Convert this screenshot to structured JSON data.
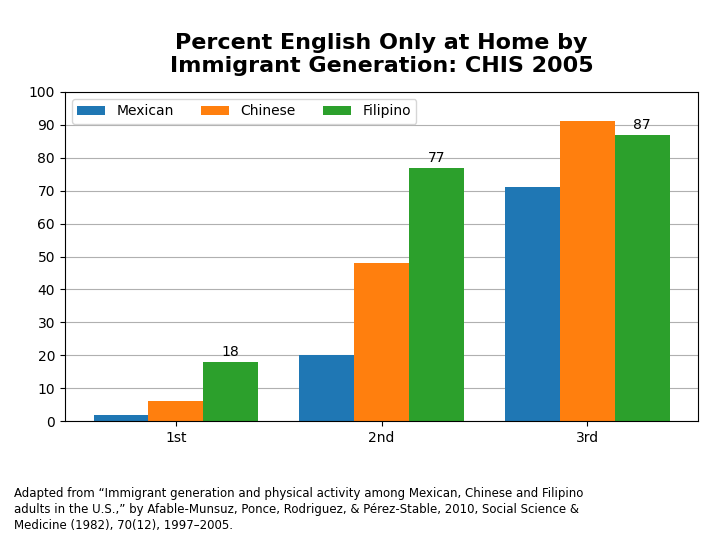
{
  "chart_data": {
    "type": "bar",
    "title": "Percent English Only at Home by\nImmigrant Generation: CHIS 2005",
    "categories": [
      "1st",
      "2nd",
      "3rd"
    ],
    "series": [
      {
        "name": "Mexican",
        "values": [
          2,
          20,
          71
        ]
      },
      {
        "name": "Chinese",
        "values": [
          6,
          48,
          91
        ]
      },
      {
        "name": "Filipino",
        "values": [
          18,
          77,
          87
        ],
        "data_labels": true
      }
    ],
    "ylim": [
      0,
      100
    ],
    "yticks": [
      0,
      10,
      20,
      30,
      40,
      50,
      60,
      70,
      80,
      90,
      100
    ],
    "grid": true,
    "legend": "upper left",
    "annotations": [
      "Adapted from “Immigrant generation and physical activity among Mexican, Chinese and Filipino\nadults in the U.S.,” by Afable-Munsuz, Ponce, Rodriguez, & Pérez-Stable, 2010, Social Science &\nMedicine (1982), 70(12), 1997–2005."
    ]
  }
}
